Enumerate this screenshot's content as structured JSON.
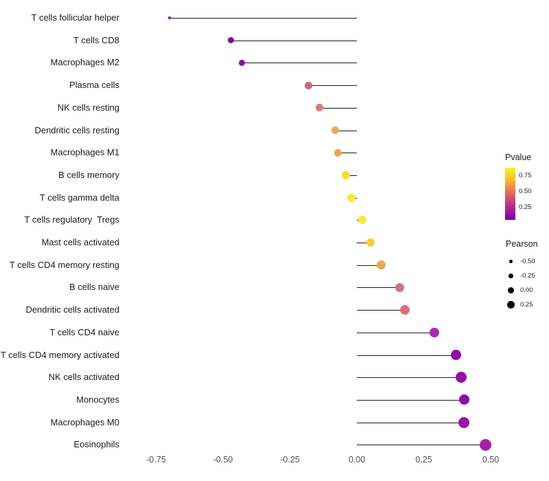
{
  "chart_data": {
    "type": "lollipop",
    "orientation": "horizontal",
    "title": "",
    "xlabel": "",
    "ylabel": "",
    "xlim": [
      -0.86,
      0.53
    ],
    "grid": false,
    "x_ticks": [
      "-0.75",
      "-0.50",
      "-0.25",
      "0.00",
      "0.25",
      "0.50"
    ],
    "x_tick_values": [
      -0.75,
      -0.5,
      -0.25,
      0.0,
      0.25,
      0.5
    ],
    "color_encodes": "Pvalue",
    "size_encodes": "Pearson",
    "points": [
      {
        "label": "T cells follicular helper",
        "pearson": -0.7,
        "color": "#7E03A8",
        "radius": 1.8
      },
      {
        "label": "T cells CD8",
        "pearson": -0.47,
        "color": "#7E03A8",
        "radius": 4.5
      },
      {
        "label": "Macrophages M2",
        "pearson": -0.43,
        "color": "#8B0AA5",
        "radius": 4.5
      },
      {
        "label": "Plasma cells",
        "pearson": -0.18,
        "color": "#CE6975",
        "radius": 5.5
      },
      {
        "label": "NK cells resting",
        "pearson": -0.14,
        "color": "#D87A82",
        "radius": 5.5
      },
      {
        "label": "Dendritic cells resting",
        "pearson": -0.08,
        "color": "#E9A95A",
        "radius": 5.5
      },
      {
        "label": "Macrophages M1",
        "pearson": -0.07,
        "color": "#EBA64F",
        "radius": 5.5
      },
      {
        "label": "B cells memory",
        "pearson": -0.04,
        "color": "#F4E02C",
        "radius": 6
      },
      {
        "label": "T cells gamma delta",
        "pearson": -0.02,
        "color": "#F7EA30",
        "radius": 6
      },
      {
        "label": "T cells regulatory  Tregs",
        "pearson": 0.02,
        "color": "#F5EC36",
        "radius": 6
      },
      {
        "label": "Mast cells activated",
        "pearson": 0.05,
        "color": "#F2CF3F",
        "radius": 6
      },
      {
        "label": "T cells CD4 memory resting",
        "pearson": 0.09,
        "color": "#ECAA4E",
        "radius": 6.5
      },
      {
        "label": "B cells naive",
        "pearson": 0.16,
        "color": "#D4737E",
        "radius": 6.5
      },
      {
        "label": "Dendritic cells activated",
        "pearson": 0.18,
        "color": "#D8707B",
        "radius": 7
      },
      {
        "label": "T cells CD4 naive",
        "pearson": 0.29,
        "color": "#A62BAD",
        "radius": 7
      },
      {
        "label": "T cells CD4 memory activated",
        "pearson": 0.37,
        "color": "#8E0DA4",
        "radius": 7.5
      },
      {
        "label": "NK cells activated",
        "pearson": 0.39,
        "color": "#9511A2",
        "radius": 8
      },
      {
        "label": "Monocytes",
        "pearson": 0.4,
        "color": "#8E0DA4",
        "radius": 7.5
      },
      {
        "label": "Macrophages M0",
        "pearson": 0.4,
        "color": "#9B15A5",
        "radius": 8
      },
      {
        "label": "Eosinophils",
        "pearson": 0.48,
        "color": "#A420A8",
        "radius": 8.5
      }
    ],
    "legend": {
      "pvalue": {
        "title": "Pvalue",
        "ticks": [
          "0.75",
          "0.50",
          "0.25"
        ],
        "tick_offsets": [
          12,
          35,
          58
        ],
        "gradient": [
          "#F0F921",
          "#FDB32F",
          "#E16462",
          "#B12A90",
          "#7201A8"
        ]
      },
      "pearson": {
        "title": "Pearson",
        "items": [
          {
            "label": "-0.50",
            "radius": 2.5
          },
          {
            "label": "-0.25",
            "radius": 3.5
          },
          {
            "label": "0.00",
            "radius": 4.5
          },
          {
            "label": "0.25",
            "radius": 5.5
          }
        ]
      }
    }
  }
}
